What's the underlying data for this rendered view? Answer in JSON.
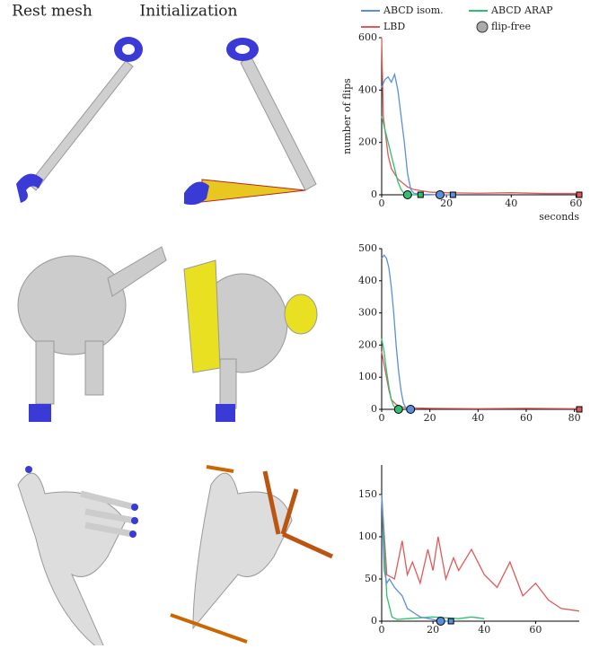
{
  "column_headers": [
    "Rest mesh",
    "Initialization"
  ],
  "chart_data": [
    {
      "type": "line",
      "ylabel": "number of flips",
      "xlabel": "seconds",
      "flip_free_label": "flip-free",
      "xlim": [
        0,
        61
      ],
      "ylim": [
        0,
        600
      ],
      "xticks": [
        0,
        20,
        40,
        60
      ],
      "yticks": [
        0,
        200,
        400,
        600
      ],
      "series": [
        {
          "name": "ABCD isom.",
          "color": "#5b8fdc",
          "x": [
            0,
            1,
            2,
            3,
            4,
            5,
            6,
            7,
            8,
            9,
            10,
            12,
            15,
            18,
            22
          ],
          "values": [
            410,
            440,
            450,
            430,
            460,
            400,
            300,
            200,
            80,
            20,
            5,
            2,
            1,
            0,
            0
          ],
          "flip_free": 18,
          "inset": 22
        },
        {
          "name": "ABCD ARAP",
          "color": "#2fbf71",
          "x": [
            0,
            1,
            2,
            3,
            4,
            5,
            6,
            7,
            8,
            12
          ],
          "values": [
            300,
            250,
            200,
            150,
            100,
            50,
            20,
            5,
            0,
            0
          ],
          "flip_free": 8,
          "inset": 12
        },
        {
          "name": "LBD",
          "color": "#e05a5a",
          "x": [
            0,
            0.5,
            1,
            2,
            3,
            5,
            8,
            10,
            15,
            20,
            30,
            40,
            50,
            60
          ],
          "values": [
            600,
            300,
            250,
            150,
            100,
            60,
            30,
            20,
            10,
            8,
            6,
            8,
            5,
            5
          ],
          "flip_free": null,
          "inset": 61
        }
      ]
    },
    {
      "type": "line",
      "xlim": [
        0,
        82
      ],
      "ylim": [
        0,
        500
      ],
      "xticks": [
        0,
        20,
        40,
        60,
        80
      ],
      "yticks": [
        0,
        100,
        200,
        300,
        400,
        500
      ],
      "series": [
        {
          "name": "ABCD isom.",
          "color": "#5b8fdc",
          "x": [
            0,
            1,
            2,
            3,
            4,
            5,
            6,
            7,
            8,
            9,
            10,
            12
          ],
          "values": [
            470,
            480,
            470,
            440,
            380,
            300,
            200,
            120,
            60,
            20,
            5,
            0
          ],
          "flip_free": 12,
          "inset": null
        },
        {
          "name": "ABCD ARAP",
          "color": "#2fbf71",
          "x": [
            0,
            1,
            2,
            3,
            4,
            5,
            6,
            7
          ],
          "values": [
            220,
            180,
            120,
            70,
            30,
            10,
            3,
            0
          ],
          "flip_free": 7,
          "inset": null
        },
        {
          "name": "LBD",
          "color": "#e05a5a",
          "x": [
            0,
            1,
            2,
            3,
            4,
            6,
            8,
            10,
            20,
            40,
            60,
            80,
            82
          ],
          "values": [
            180,
            140,
            100,
            60,
            30,
            15,
            8,
            5,
            3,
            2,
            3,
            2,
            2
          ],
          "flip_free": null,
          "inset": 82
        }
      ]
    },
    {
      "type": "line",
      "xlim": [
        0,
        77
      ],
      "ylim": [
        0,
        185
      ],
      "xticks": [
        0,
        20,
        40,
        60
      ],
      "yticks": [
        0,
        50,
        100,
        150
      ],
      "series": [
        {
          "name": "ABCD isom.",
          "color": "#5b8fdc",
          "x": [
            0,
            1,
            2,
            3,
            5,
            8,
            10,
            15,
            20,
            23,
            27
          ],
          "values": [
            150,
            60,
            45,
            50,
            40,
            30,
            15,
            5,
            2,
            0,
            0
          ],
          "flip_free": 23,
          "inset": 27
        },
        {
          "name": "ABCD ARAP",
          "color": "#2fbf71",
          "x": [
            0,
            2,
            4,
            6,
            10,
            15,
            20,
            25,
            30,
            35,
            40
          ],
          "values": [
            150,
            30,
            5,
            2,
            3,
            4,
            5,
            4,
            3,
            5,
            3
          ],
          "flip_free": null,
          "inset": null
        },
        {
          "name": "LBD",
          "color": "#e05a5a",
          "x": [
            0,
            2,
            5,
            8,
            10,
            12,
            15,
            18,
            20,
            22,
            25,
            28,
            30,
            35,
            40,
            45,
            50,
            55,
            60,
            65,
            70,
            77
          ],
          "values": [
            150,
            55,
            50,
            95,
            55,
            70,
            45,
            85,
            60,
            100,
            50,
            75,
            60,
            85,
            55,
            40,
            70,
            30,
            45,
            25,
            15,
            12
          ],
          "flip_free": null,
          "inset": null
        }
      ]
    }
  ]
}
